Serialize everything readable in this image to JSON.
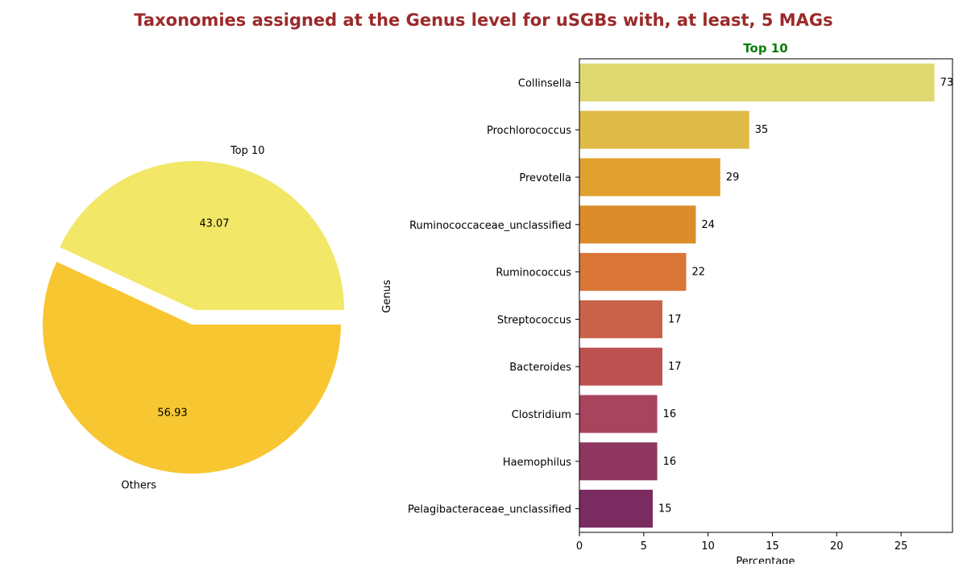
{
  "title": "Taxonomies assigned at the Genus level for uSGBs with, at least, 5 MAGs",
  "colors": {
    "title": "#9b2a2a",
    "subtitle": "#0b7d0b",
    "pie": [
      "#f2e766",
      "#f7c630"
    ],
    "bars": [
      "#e0d972",
      "#e1bb47",
      "#e1a12f",
      "#dc8c2b",
      "#d97638",
      "#c96249",
      "#bd5050",
      "#a8445d",
      "#8e3660",
      "#7a2b60"
    ]
  },
  "chart_data": [
    {
      "type": "pie",
      "slices": [
        {
          "label": "Top 10",
          "value": 43.07,
          "display": "43.07",
          "exploded": true
        },
        {
          "label": "Others",
          "value": 56.93,
          "display": "56.93",
          "exploded": false
        }
      ],
      "start_angle_deg": 0,
      "direction": "counterclockwise"
    },
    {
      "type": "bar",
      "orientation": "horizontal",
      "title": "Top 10",
      "xlabel": "Percentage",
      "ylabel": "Genus",
      "xlim": [
        0,
        29
      ],
      "xticks": [
        0,
        5,
        10,
        15,
        20,
        25
      ],
      "categories": [
        "Collinsella",
        "Prochlorococcus",
        "Prevotella",
        "Ruminococcaceae_unclassified",
        "Ruminococcus",
        "Streptococcus",
        "Bacteroides",
        "Clostridium",
        "Haemophilus",
        "Pelagibacteraceae_unclassified"
      ],
      "values": [
        27.6,
        13.2,
        10.95,
        9.05,
        8.3,
        6.45,
        6.45,
        6.05,
        6.05,
        5.7
      ],
      "data_labels": [
        "73",
        "35",
        "29",
        "24",
        "22",
        "17",
        "17",
        "16",
        "16",
        "15"
      ],
      "grid": false
    }
  ]
}
